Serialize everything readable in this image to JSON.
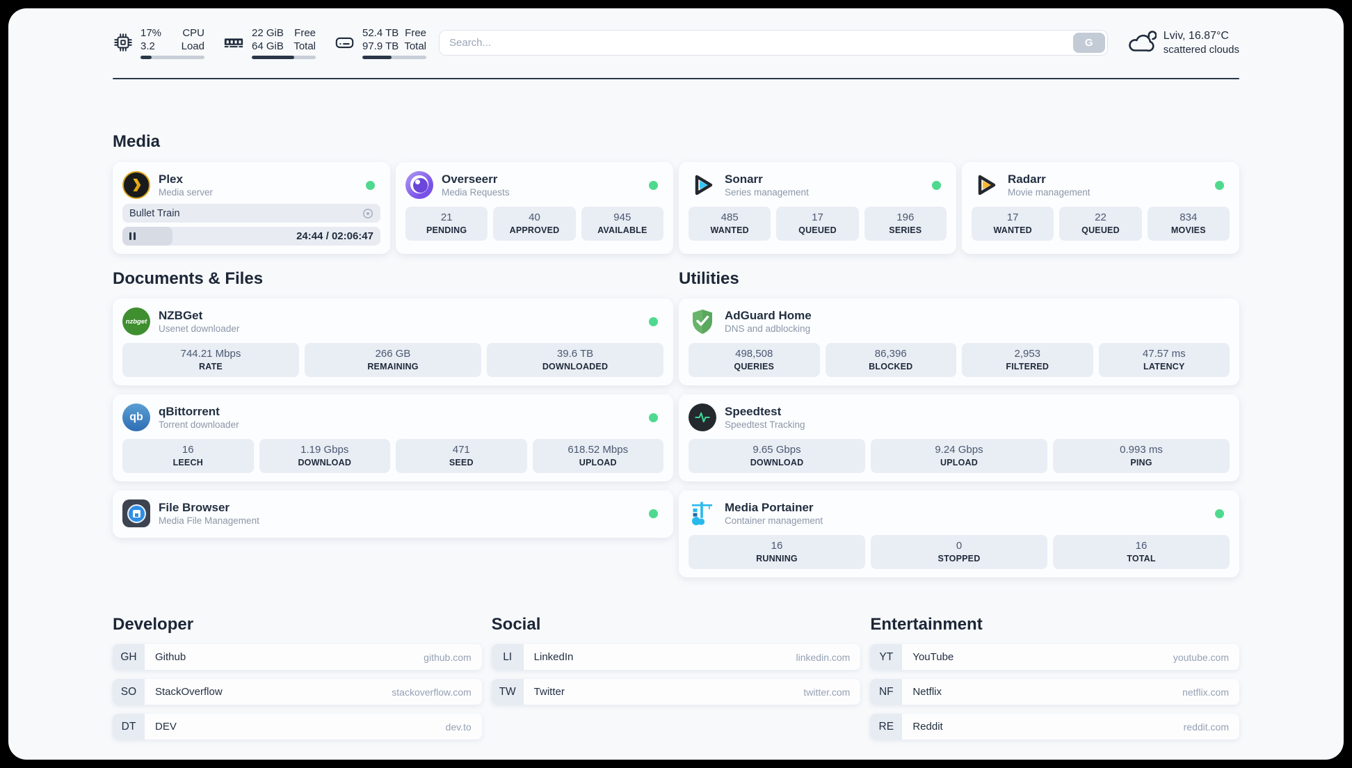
{
  "topbar": {
    "stats": [
      {
        "icon": "cpu-icon",
        "values": [
          "17%",
          "3.2"
        ],
        "labels": [
          "CPU",
          "Load"
        ],
        "progress": 17
      },
      {
        "icon": "ram-icon",
        "values": [
          "22 GiB",
          "64 GiB"
        ],
        "labels": [
          "Free",
          "Total"
        ],
        "progress": 66
      },
      {
        "icon": "disk-icon",
        "values": [
          "52.4 TB",
          "97.9 TB"
        ],
        "labels": [
          "Free",
          "Total"
        ],
        "progress": 46
      }
    ],
    "search": {
      "placeholder": "Search...",
      "button_label": "G"
    },
    "weather": {
      "icon": "cloud-moon-icon",
      "location_temp": "Lviv, 16.87°C",
      "condition": "scattered clouds"
    }
  },
  "media": {
    "title": "Media",
    "plex": {
      "name": "Plex",
      "desc": "Media server",
      "now_playing": "Bullet Train",
      "time": "24:44 / 02:06:47",
      "progress": 19.5
    },
    "overseerr": {
      "name": "Overseerr",
      "desc": "Media Requests",
      "stats": [
        {
          "value": "21",
          "label": "PENDING"
        },
        {
          "value": "40",
          "label": "APPROVED"
        },
        {
          "value": "945",
          "label": "AVAILABLE"
        }
      ]
    },
    "sonarr": {
      "name": "Sonarr",
      "desc": "Series management",
      "stats": [
        {
          "value": "485",
          "label": "WANTED"
        },
        {
          "value": "17",
          "label": "QUEUED"
        },
        {
          "value": "196",
          "label": "SERIES"
        }
      ]
    },
    "radarr": {
      "name": "Radarr",
      "desc": "Movie management",
      "stats": [
        {
          "value": "17",
          "label": "WANTED"
        },
        {
          "value": "22",
          "label": "QUEUED"
        },
        {
          "value": "834",
          "label": "MOVIES"
        }
      ]
    }
  },
  "documents": {
    "title": "Documents & Files",
    "nzbget": {
      "name": "NZBGet",
      "desc": "Usenet downloader",
      "icon_text": "nzbget",
      "stats": [
        {
          "value": "744.21 Mbps",
          "label": "RATE"
        },
        {
          "value": "266 GB",
          "label": "REMAINING"
        },
        {
          "value": "39.6 TB",
          "label": "DOWNLOADED"
        }
      ]
    },
    "qbittorrent": {
      "name": "qBittorrent",
      "desc": "Torrent downloader",
      "icon_text": "qb",
      "stats": [
        {
          "value": "16",
          "label": "LEECH"
        },
        {
          "value": "1.19 Gbps",
          "label": "DOWNLOAD"
        },
        {
          "value": "471",
          "label": "SEED"
        },
        {
          "value": "618.52 Mbps",
          "label": "UPLOAD"
        }
      ]
    },
    "filebrowser": {
      "name": "File Browser",
      "desc": "Media File Management"
    }
  },
  "utilities": {
    "title": "Utilities",
    "adguard": {
      "name": "AdGuard Home",
      "desc": "DNS and adblocking",
      "stats": [
        {
          "value": "498,508",
          "label": "QUERIES"
        },
        {
          "value": "86,396",
          "label": "BLOCKED"
        },
        {
          "value": "2,953",
          "label": "FILTERED"
        },
        {
          "value": "47.57 ms",
          "label": "LATENCY"
        }
      ]
    },
    "speedtest": {
      "name": "Speedtest",
      "desc": "Speedtest Tracking",
      "stats": [
        {
          "value": "9.65 Gbps",
          "label": "DOWNLOAD"
        },
        {
          "value": "9.24 Gbps",
          "label": "UPLOAD"
        },
        {
          "value": "0.993 ms",
          "label": "PING"
        }
      ]
    },
    "portainer": {
      "name": "Media Portainer",
      "desc": "Container management",
      "stats": [
        {
          "value": "16",
          "label": "RUNNING"
        },
        {
          "value": "0",
          "label": "STOPPED"
        },
        {
          "value": "16",
          "label": "TOTAL"
        }
      ]
    }
  },
  "bookmarks": {
    "developer": {
      "title": "Developer",
      "items": [
        {
          "abbr": "GH",
          "name": "Github",
          "domain": "github.com"
        },
        {
          "abbr": "SO",
          "name": "StackOverflow",
          "domain": "stackoverflow.com"
        },
        {
          "abbr": "DT",
          "name": "DEV",
          "domain": "dev.to"
        }
      ]
    },
    "social": {
      "title": "Social",
      "items": [
        {
          "abbr": "LI",
          "name": "LinkedIn",
          "domain": "linkedin.com"
        },
        {
          "abbr": "TW",
          "name": "Twitter",
          "domain": "twitter.com"
        }
      ]
    },
    "entertainment": {
      "title": "Entertainment",
      "items": [
        {
          "abbr": "YT",
          "name": "YouTube",
          "domain": "youtube.com"
        },
        {
          "abbr": "NF",
          "name": "Netflix",
          "domain": "netflix.com"
        },
        {
          "abbr": "RE",
          "name": "Reddit",
          "domain": "reddit.com"
        }
      ]
    }
  },
  "colors": {
    "accent_green": "#4fd98e",
    "dark_navy": "#2b3648",
    "panel_bg": "#f7f9fb"
  }
}
